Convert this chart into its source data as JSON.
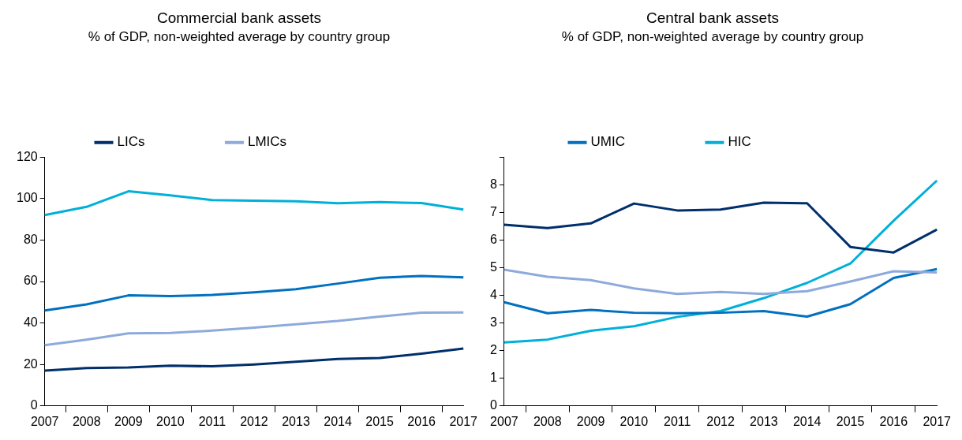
{
  "chart_data": [
    {
      "type": "line",
      "title": "Commercial bank assets",
      "subtitle": "% of GDP, non-weighted average by country group",
      "categories": [
        "2007",
        "2008",
        "2009",
        "2010",
        "2011",
        "2012",
        "2013",
        "2014",
        "2015",
        "2016",
        "2017"
      ],
      "series": [
        {
          "name": "LICs",
          "color": "#002f6c",
          "values": [
            17,
            18.3,
            18.6,
            19.4,
            19.1,
            20,
            21.3,
            22.6,
            23.1,
            25.2,
            27.7
          ]
        },
        {
          "name": "LMICs",
          "color": "#8eaadb",
          "values": [
            29.3,
            32,
            35,
            35.2,
            36.3,
            37.8,
            39.4,
            41,
            43.1,
            45,
            45.1
          ]
        },
        {
          "color": "#0070c0",
          "values": [
            46,
            49,
            53.3,
            53,
            53.5,
            54.8,
            56.3,
            59,
            61.8,
            62.7,
            62
          ]
        },
        {
          "color": "#00b0d8",
          "values": [
            92,
            96,
            103.5,
            101.5,
            99.3,
            99,
            98.7,
            97.7,
            98.3,
            97.8,
            94.7
          ]
        }
      ],
      "ylim": [
        0,
        120
      ],
      "yticks": [
        0,
        20,
        40,
        60,
        80,
        100,
        120
      ],
      "grid": false,
      "legend": "top",
      "marker": "none",
      "line_style": "solid"
    },
    {
      "type": "line",
      "title": "Central bank assets",
      "subtitle": "% of GDP, non-weighted average by country group",
      "categories": [
        "2007",
        "2008",
        "2009",
        "2010",
        "2011",
        "2012",
        "2013",
        "2014",
        "2015",
        "2016",
        "2017"
      ],
      "series": [
        {
          "color": "#002f6c",
          "values": [
            6.55,
            6.43,
            6.6,
            7.32,
            7.07,
            7.1,
            7.35,
            7.33,
            5.75,
            5.55,
            6.38
          ]
        },
        {
          "color": "#8eaadb",
          "values": [
            4.93,
            4.67,
            4.55,
            4.25,
            4.05,
            4.12,
            4.05,
            4.15,
            4.5,
            4.87,
            4.83
          ]
        },
        {
          "name": "UMIC",
          "color": "#0070c0",
          "values": [
            3.75,
            3.35,
            3.47,
            3.37,
            3.35,
            3.37,
            3.43,
            3.23,
            3.68,
            4.63,
            4.95
          ]
        },
        {
          "name": "HIC",
          "color": "#00b0d8",
          "values": [
            2.3,
            2.4,
            2.72,
            2.88,
            3.22,
            3.43,
            3.9,
            4.45,
            5.15,
            6.7,
            8.15
          ]
        }
      ],
      "ylim": [
        0,
        9
      ],
      "yticks": [
        0,
        1,
        2,
        3,
        4,
        5,
        6,
        7,
        8,
        {
          "value": 9,
          "label": null
        }
      ],
      "grid": false,
      "legend": "top",
      "marker": "none",
      "line_style": "solid"
    }
  ]
}
